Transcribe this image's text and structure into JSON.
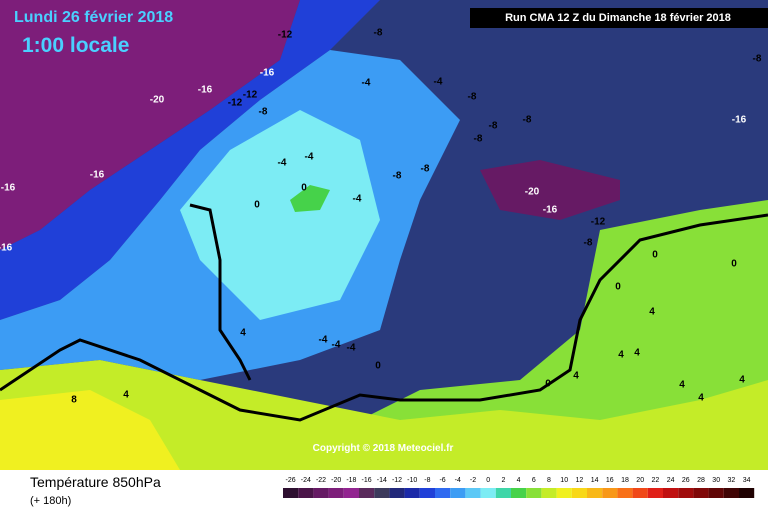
{
  "header": {
    "date": "Lundi 26 février 2018",
    "time": "1:00 locale",
    "run": "Run CMA 12 Z du Dimanche 18 février 2018"
  },
  "copyright": "Copyright © 2018 Meteociel.fr",
  "legend": {
    "title": "Température 850hPa",
    "subtitle": "(+ 180h)",
    "ticks": [
      -26,
      -24,
      -22,
      -20,
      -18,
      -16,
      -14,
      -12,
      -10,
      -8,
      -6,
      -4,
      -2,
      0,
      2,
      4,
      6,
      8,
      10,
      12,
      14,
      16,
      18,
      20,
      22,
      24,
      26,
      28,
      30,
      32,
      34
    ],
    "colors": [
      "#2e1030",
      "#4a1448",
      "#661a64",
      "#7d1e7a",
      "#922490",
      "#5a2a5c",
      "#3c3a5c",
      "#22287a",
      "#1c2aa8",
      "#2040d8",
      "#2f6af0",
      "#3c9cf4",
      "#5cc8f6",
      "#7cecf4",
      "#3fd6a8",
      "#46d24a",
      "#88e038",
      "#c4ec28",
      "#f0f020",
      "#f8d818",
      "#f8b818",
      "#f89818",
      "#f87018",
      "#f04818",
      "#e02018",
      "#c01010",
      "#a00c0c",
      "#800808",
      "#600606",
      "#400404",
      "#200202"
    ]
  },
  "contour_labels": [
    -12,
    -8,
    -8,
    -16,
    -20,
    -16,
    -12,
    -12,
    -8,
    -4,
    -4,
    -8,
    -8,
    -8,
    -8,
    -16,
    -4,
    -4,
    -8,
    -8,
    -16,
    -16,
    0,
    -20,
    -16,
    -4,
    0,
    -12,
    -8,
    -16,
    4,
    -4,
    -4,
    -4,
    0,
    4,
    8,
    0,
    4,
    4,
    4,
    4,
    0,
    0,
    4,
    4,
    4,
    0
  ]
}
